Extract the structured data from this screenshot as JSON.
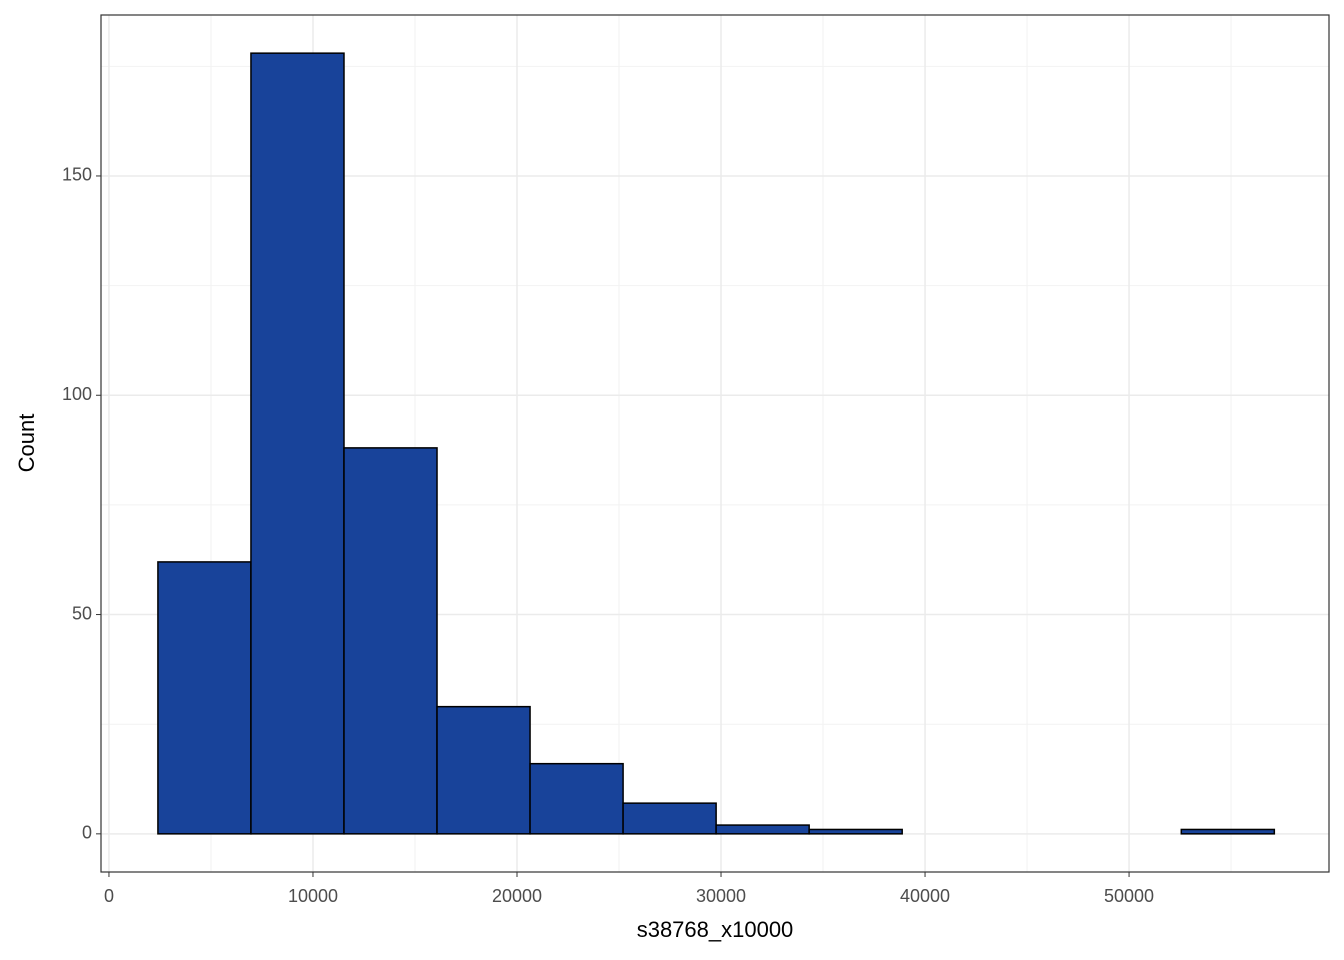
{
  "chart_data": {
    "type": "histogram",
    "x_label": "s38768_x10000",
    "y_label": "Count",
    "bins": [
      2400,
      6960,
      11520,
      16080,
      20640,
      25200,
      29760,
      34320,
      38880,
      43440,
      48000,
      52560,
      57120
    ],
    "values": [
      62,
      178,
      88,
      29,
      16,
      7,
      2,
      1,
      0,
      0,
      0,
      1
    ],
    "color": "#18439a",
    "edgecolor": "#000000",
    "xlim": [
      -390,
      59800
    ],
    "ylim": [
      -8.7,
      186.7
    ],
    "xticks": [
      0,
      10000,
      20000,
      30000,
      40000,
      50000
    ],
    "yticks": [
      0,
      50,
      100,
      150
    ],
    "grid": true,
    "minor_grid": true
  }
}
